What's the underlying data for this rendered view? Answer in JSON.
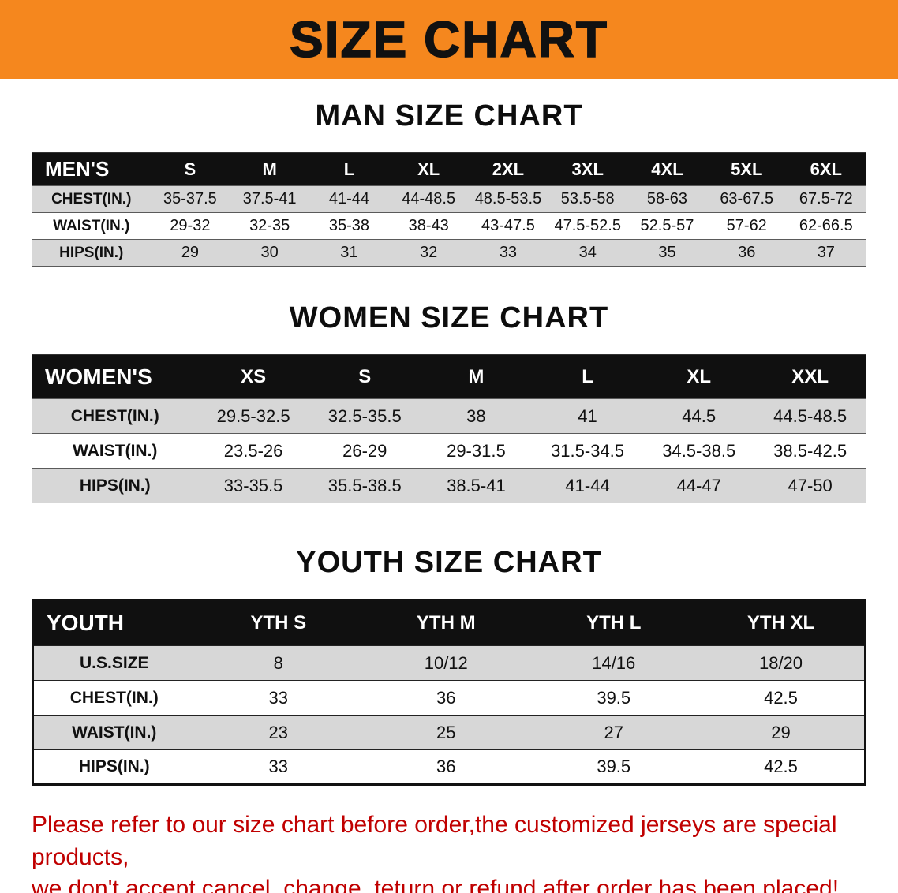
{
  "banner": {
    "title": "SIZE CHART"
  },
  "headings": {
    "men": "MAN SIZE CHART",
    "women": "WOMEN SIZE CHART",
    "youth": "YOUTH SIZE CHART"
  },
  "chart_data": [
    {
      "type": "table",
      "name": "men",
      "title": "MAN SIZE CHART",
      "corner_label": "MEN'S",
      "columns": [
        "S",
        "M",
        "L",
        "XL",
        "2XL",
        "3XL",
        "4XL",
        "5XL",
        "6XL"
      ],
      "rows": [
        {
          "label": "CHEST(IN.)",
          "values": [
            "35-37.5",
            "37.5-41",
            "41-44",
            "44-48.5",
            "48.5-53.5",
            "53.5-58",
            "58-63",
            "63-67.5",
            "67.5-72"
          ]
        },
        {
          "label": "WAIST(IN.)",
          "values": [
            "29-32",
            "32-35",
            "35-38",
            "38-43",
            "43-47.5",
            "47.5-52.5",
            "52.5-57",
            "57-62",
            "62-66.5"
          ]
        },
        {
          "label": "HIPS(IN.)",
          "values": [
            "29",
            "30",
            "31",
            "32",
            "33",
            "34",
            "35",
            "36",
            "37"
          ]
        }
      ]
    },
    {
      "type": "table",
      "name": "women",
      "title": "WOMEN SIZE CHART",
      "corner_label": "WOMEN'S",
      "columns": [
        "XS",
        "S",
        "M",
        "L",
        "XL",
        "XXL"
      ],
      "rows": [
        {
          "label": "CHEST(IN.)",
          "values": [
            "29.5-32.5",
            "32.5-35.5",
            "38",
            "41",
            "44.5",
            "44.5-48.5"
          ]
        },
        {
          "label": "WAIST(IN.)",
          "values": [
            "23.5-26",
            "26-29",
            "29-31.5",
            "31.5-34.5",
            "34.5-38.5",
            "38.5-42.5"
          ]
        },
        {
          "label": "HIPS(IN.)",
          "values": [
            "33-35.5",
            "35.5-38.5",
            "38.5-41",
            "41-44",
            "44-47",
            "47-50"
          ]
        }
      ]
    },
    {
      "type": "table",
      "name": "youth",
      "title": "YOUTH SIZE CHART",
      "corner_label": "YOUTH",
      "columns": [
        "YTH S",
        "YTH M",
        "YTH L",
        "YTH XL"
      ],
      "rows": [
        {
          "label": "U.S.SIZE",
          "values": [
            "8",
            "10/12",
            "14/16",
            "18/20"
          ]
        },
        {
          "label": "CHEST(IN.)",
          "values": [
            "33",
            "36",
            "39.5",
            "42.5"
          ]
        },
        {
          "label": "WAIST(IN.)",
          "values": [
            "23",
            "25",
            "27",
            "29"
          ]
        },
        {
          "label": "HIPS(IN.)",
          "values": [
            "33",
            "36",
            "39.5",
            "42.5"
          ]
        }
      ]
    }
  ],
  "note": {
    "line1": "Please refer to our size chart before order,the customized jerseys are special products,",
    "line2": "we don't accept cancel, change, teturn or refund after order has been placed!"
  },
  "colors": {
    "banner-bg": "#F5871E",
    "header-bg": "#101010",
    "row-alt": "#D7D7D7",
    "note-red": "#C00000"
  }
}
